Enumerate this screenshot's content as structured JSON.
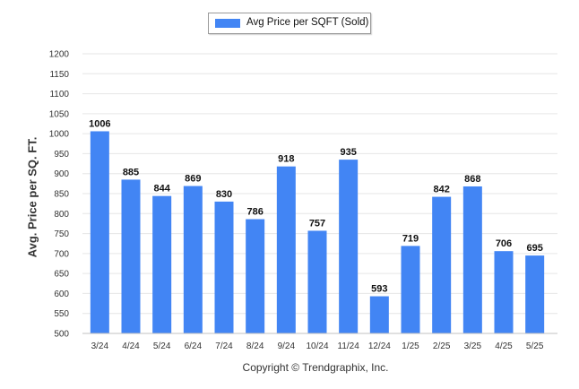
{
  "chart_data": {
    "type": "bar",
    "series": [
      {
        "name": "Avg Price per SQFT (Sold)",
        "color": "#4285f4",
        "values": [
          1006,
          885,
          844,
          869,
          830,
          786,
          918,
          757,
          935,
          593,
          719,
          842,
          868,
          706,
          695
        ]
      }
    ],
    "categories": [
      "3/24",
      "4/24",
      "5/24",
      "6/24",
      "7/24",
      "8/24",
      "9/24",
      "10/24",
      "11/24",
      "12/24",
      "1/25",
      "2/25",
      "3/25",
      "4/25",
      "5/25"
    ],
    "ylabel": "Avg. Price per SQ. FT.",
    "xlabel": "",
    "ylim": [
      500,
      1200
    ],
    "yticks": [
      500,
      550,
      600,
      650,
      700,
      750,
      800,
      850,
      900,
      950,
      1000,
      1050,
      1100,
      1150,
      1200
    ],
    "grid": true,
    "legend": "top-center",
    "data_labels": true
  },
  "footer": {
    "copyright": "Copyright © Trendgraphix, Inc."
  }
}
